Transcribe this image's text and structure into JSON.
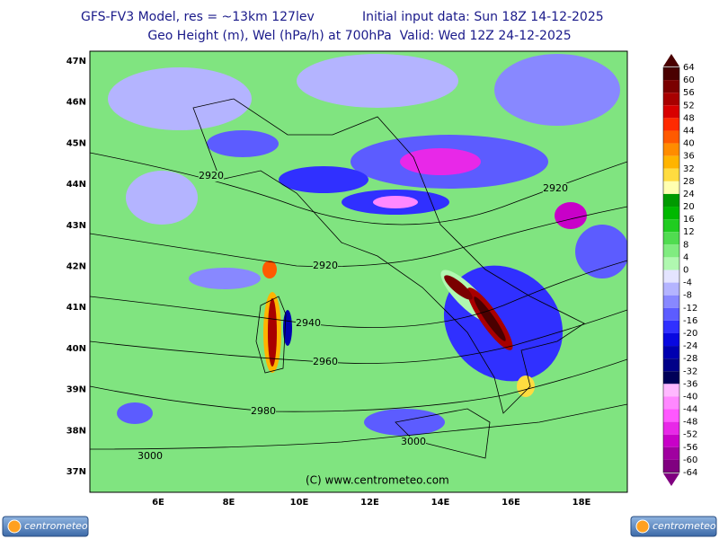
{
  "header": {
    "model": "GFS-FV3 Model, res = ~13km 127lev",
    "init": "Initial input data: Sun 18Z 14-12-2025",
    "field": "Geo Height (m), Wel (hPa/h) at 700hPa  Valid: Wed 12Z 24-12-2025"
  },
  "map": {
    "lat_labels": [
      "47N",
      "46N",
      "45N",
      "44N",
      "43N",
      "42N",
      "41N",
      "40N",
      "39N",
      "38N",
      "37N"
    ],
    "lon_labels": [
      "6E",
      "8E",
      "10E",
      "12E",
      "14E",
      "16E",
      "18E"
    ],
    "contour_labels": [
      2920,
      2920,
      2920,
      2940,
      2960,
      2980,
      3000,
      3000
    ],
    "credit": "(C) www.centrometeo.com"
  },
  "colorbar": {
    "ticks": [
      64,
      60,
      56,
      52,
      48,
      44,
      40,
      36,
      32,
      28,
      24,
      20,
      16,
      12,
      8,
      4,
      0,
      -4,
      -8,
      -12,
      -16,
      -20,
      -24,
      -28,
      -32,
      -36,
      -40,
      -44,
      -48,
      -52,
      -56,
      -60,
      -64
    ],
    "colors": [
      "#4a0000",
      "#7a0000",
      "#a80000",
      "#d80000",
      "#ff2a00",
      "#ff5a00",
      "#ff8c00",
      "#ffb400",
      "#ffdc40",
      "#ffffb0",
      "#009a00",
      "#00b800",
      "#20cc20",
      "#50dc50",
      "#80ec80",
      "#b0f8b0",
      "#e4e4ff",
      "#b4b4ff",
      "#8888ff",
      "#5c5cff",
      "#3030ff",
      "#0808e0",
      "#0000b0",
      "#000088",
      "#000058",
      "#ffb8ff",
      "#ff88ff",
      "#ff58ff",
      "#e828e8",
      "#c800c8",
      "#a000a0",
      "#800080"
    ]
  },
  "logos": [
    "centrometeo",
    "centrometeo"
  ]
}
